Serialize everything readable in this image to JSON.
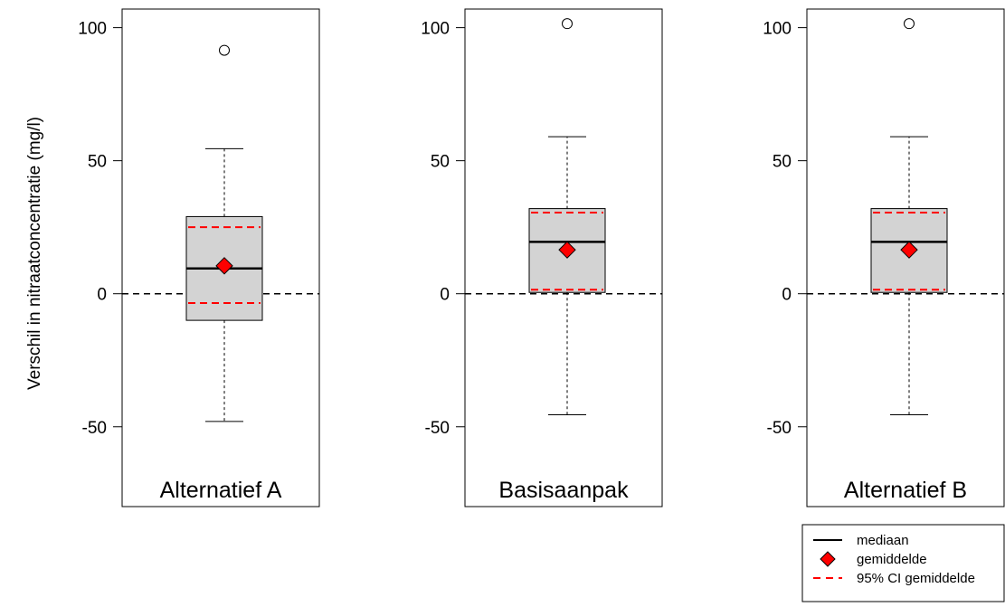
{
  "chart_data": {
    "type": "boxplot",
    "ylabel": "Verschil in nitraatconcentratie (mg/l)",
    "ylim": [
      -80,
      107
    ],
    "yticks": [
      100,
      50,
      0,
      -50
    ],
    "reference_line": 0,
    "panels": [
      {
        "title": "Alternatief A",
        "whisker_low": -48,
        "q1": -10,
        "median": 9.5,
        "q3": 29,
        "whisker_high": 54.5,
        "mean": 10.5,
        "ci_low": -3.5,
        "ci_high": 25,
        "outliers": [
          91.5
        ]
      },
      {
        "title": "Basisaanpak",
        "whisker_low": -45.5,
        "q1": 0.5,
        "median": 19.5,
        "q3": 32,
        "whisker_high": 59,
        "mean": 16.5,
        "ci_low": 1.5,
        "ci_high": 30.5,
        "outliers": [
          101.5
        ]
      },
      {
        "title": "Alternatief B",
        "whisker_low": -45.5,
        "q1": 0.5,
        "median": 19.5,
        "q3": 32,
        "whisker_high": 59,
        "mean": 16.5,
        "ci_low": 1.5,
        "ci_high": 30.5,
        "outliers": [
          101.5
        ]
      }
    ],
    "legend": {
      "position": "bottom-right",
      "entries": [
        {
          "label": "mediaan",
          "symbol": "solid-line"
        },
        {
          "label": "gemiddelde",
          "symbol": "red-diamond"
        },
        {
          "label": "95% CI gemiddelde",
          "symbol": "red-dashed-line"
        }
      ]
    },
    "colors": {
      "box_fill": "#d3d3d3",
      "mean": "#ff0000",
      "ci": "#ff0000",
      "line": "#000000"
    }
  }
}
